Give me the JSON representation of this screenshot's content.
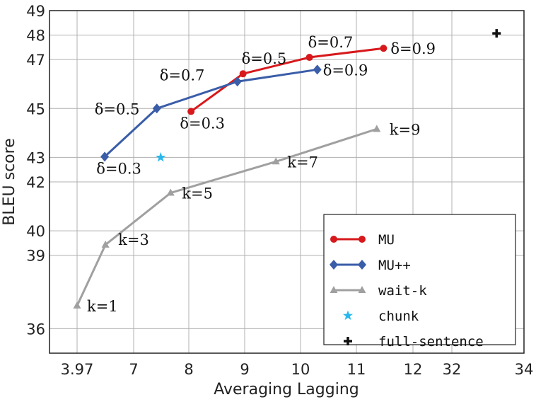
{
  "chart_data": {
    "type": "line",
    "title": "",
    "xlabel": "Averaging Lagging",
    "ylabel": "BLEU score",
    "xticks": [
      3.97,
      7,
      8,
      9,
      10,
      11,
      12,
      32,
      34
    ],
    "yticks": [
      36,
      39,
      40,
      42,
      43,
      45,
      47,
      48,
      49
    ],
    "xscale": "broken (tick-piecewise)",
    "ylim": [
      35,
      49
    ],
    "grid": true,
    "legend_position": "bottom-right",
    "series": [
      {
        "name": "MU",
        "color": "#d7191c",
        "marker": "circle",
        "x": [
          8.04,
          8.97,
          10.16,
          11.48
        ],
        "y": [
          44.88,
          46.42,
          47.09,
          47.46
        ],
        "labels": [
          "δ=0.3",
          "δ=0.5",
          "δ=0.7",
          "δ=0.9"
        ]
      },
      {
        "name": "MU++",
        "color": "#3a5da8",
        "marker": "diamond",
        "x": [
          5.45,
          7.42,
          8.87,
          10.3
        ],
        "y": [
          43.03,
          45.0,
          46.1,
          46.59
        ],
        "labels": [
          "δ=0.3",
          "δ=0.5",
          "δ=0.7",
          "δ=0.9"
        ]
      },
      {
        "name": "wait-k",
        "color": "#a0a0a0",
        "marker": "triangle",
        "x": [
          3.97,
          5.49,
          7.67,
          9.56,
          11.36
        ],
        "y": [
          36.94,
          39.43,
          41.55,
          42.83,
          44.16
        ],
        "labels": [
          "k=1",
          "k=3",
          "k=5",
          "k=7",
          "k=9"
        ]
      },
      {
        "name": "chunk",
        "color": "#2ab7ec",
        "marker": "star",
        "x": [
          7.49
        ],
        "y": [
          43.0
        ],
        "labels": [
          ""
        ]
      },
      {
        "name": "full-sentence",
        "color": "#111111",
        "marker": "plus",
        "x": [
          33.24
        ],
        "y": [
          48.07
        ],
        "labels": [
          ""
        ]
      }
    ]
  }
}
